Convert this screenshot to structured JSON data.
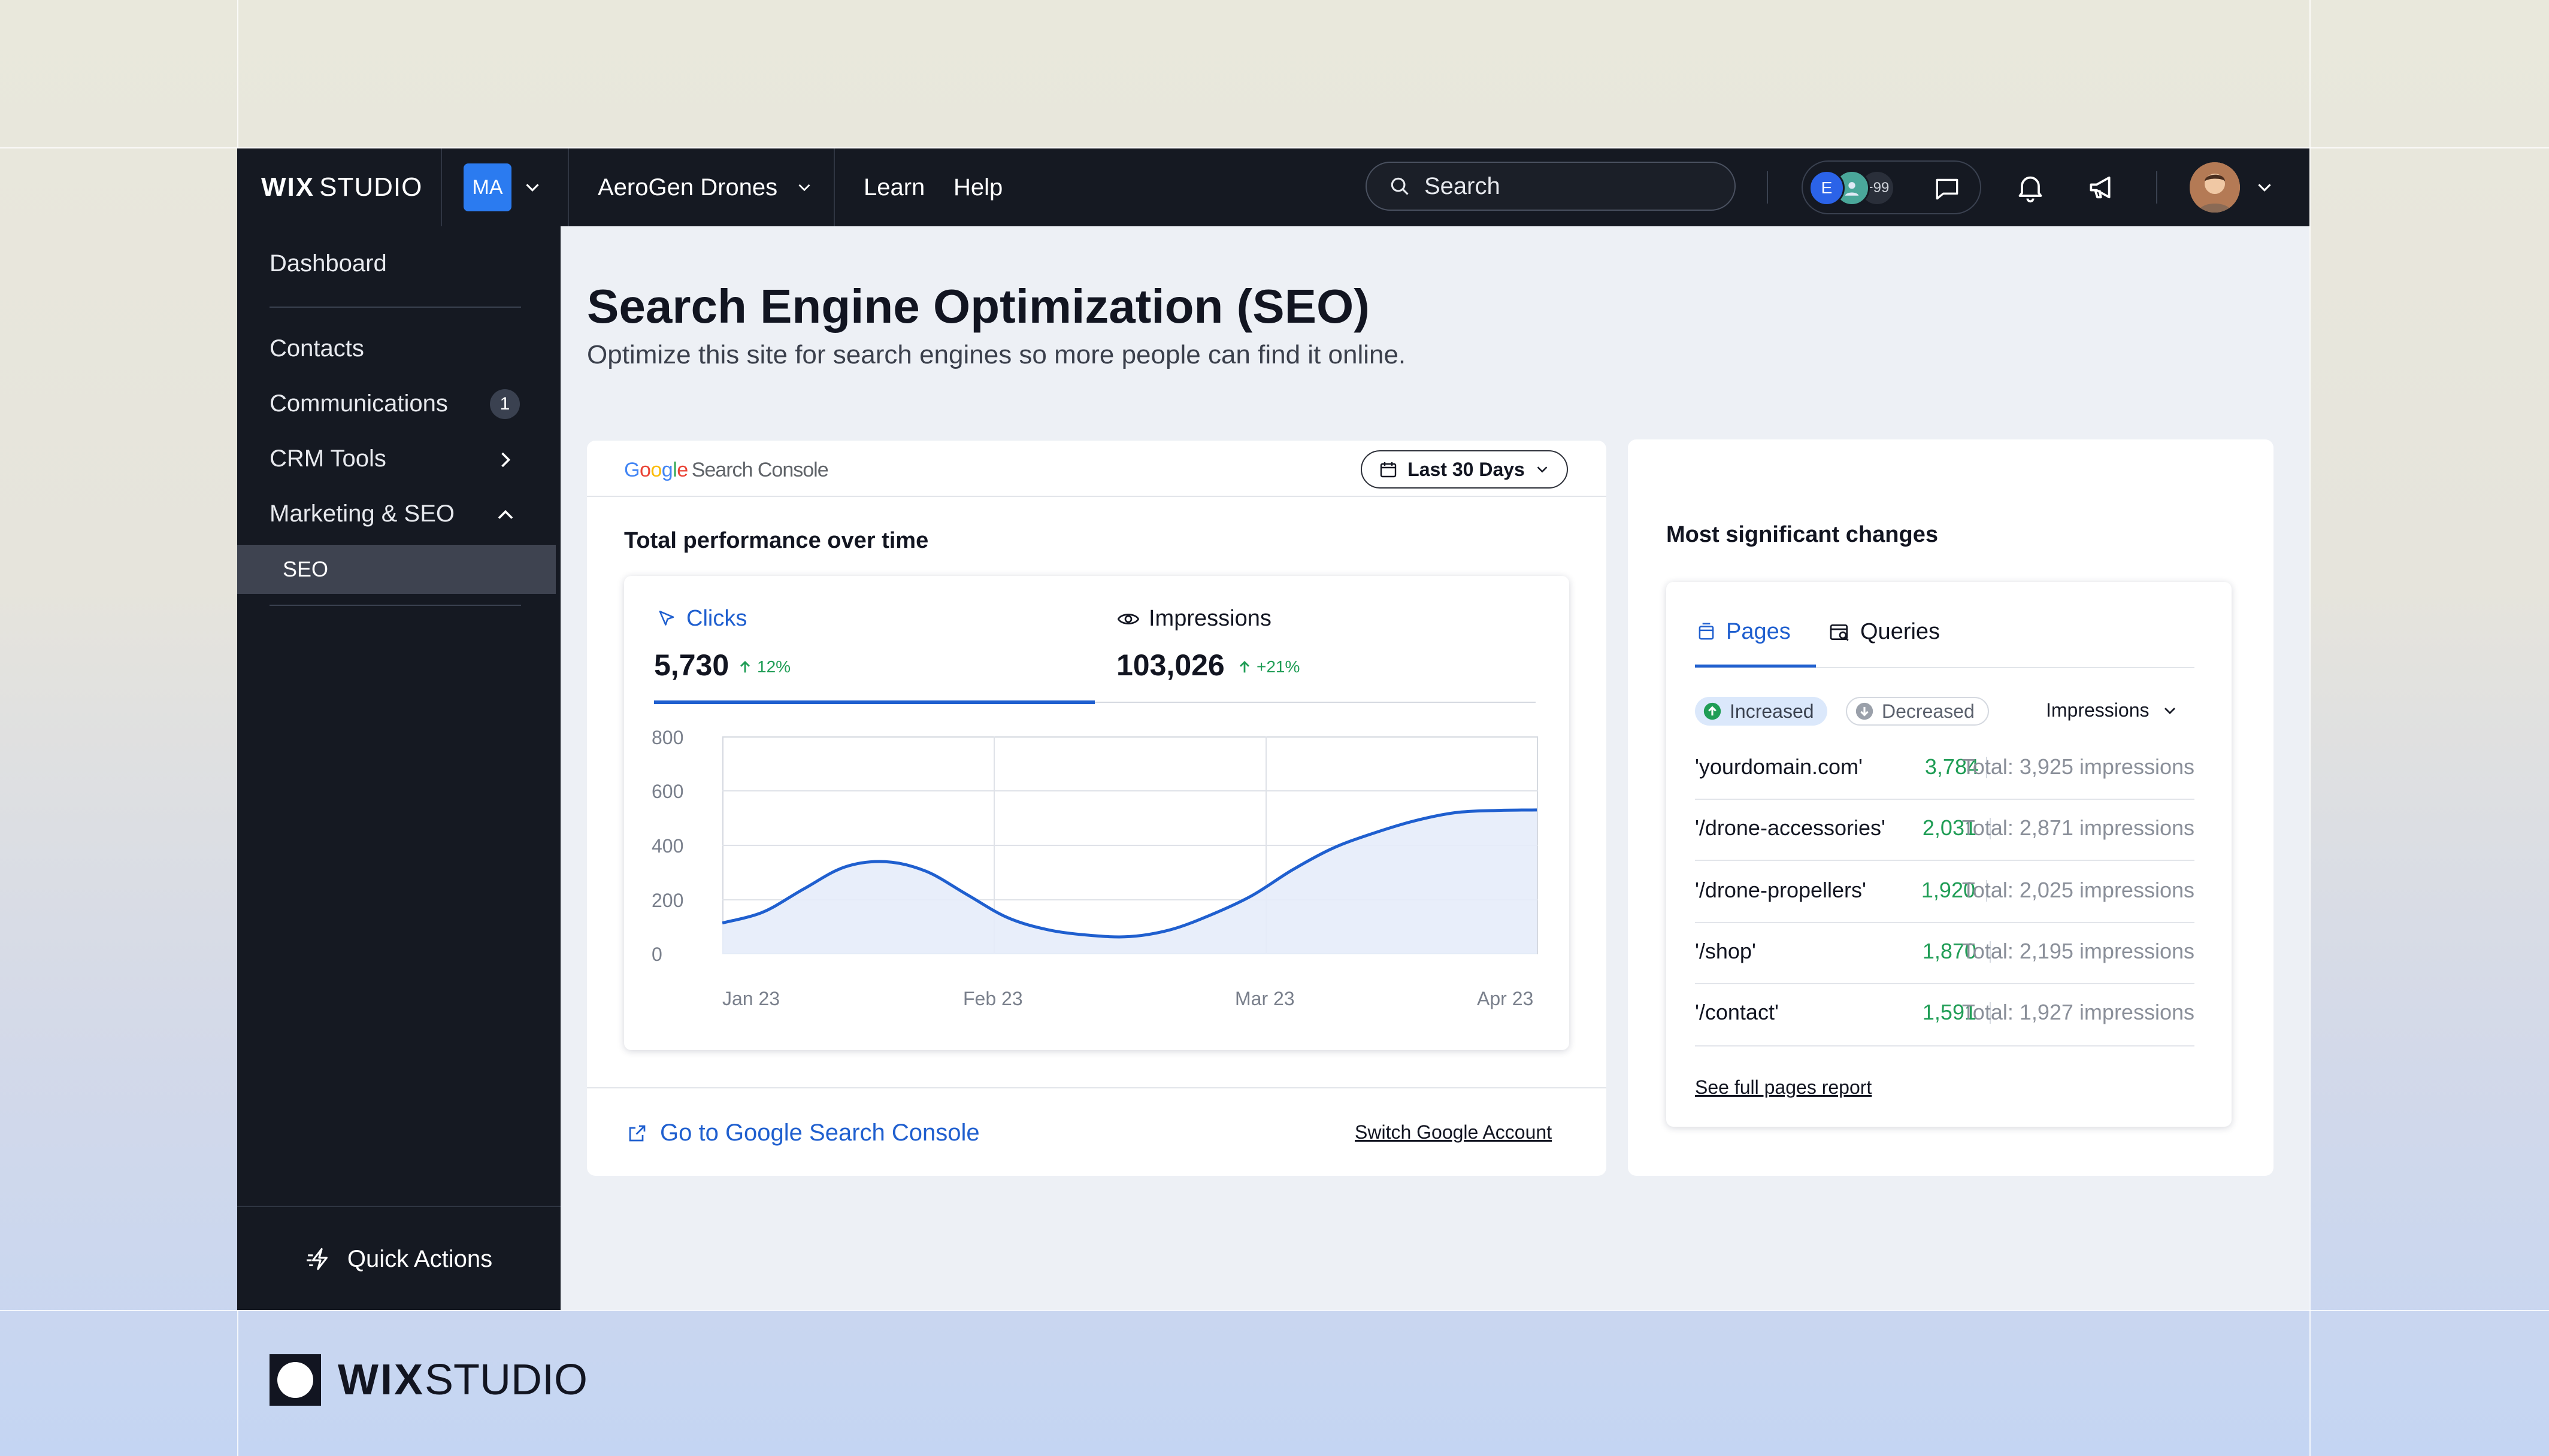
{
  "topbar": {
    "logo_bold": "WIX",
    "logo_light": "STUDIO",
    "workspace_initials": "MA",
    "site_name": "AeroGen Drones",
    "links": [
      "Learn",
      "Help"
    ],
    "search_placeholder": "Search",
    "collaborators": {
      "first_initial": "E",
      "more_count": "+99"
    }
  },
  "sidebar": {
    "items": [
      {
        "label": "Dashboard"
      },
      {
        "label": "Contacts"
      },
      {
        "label": "Communications",
        "badge": "1"
      },
      {
        "label": "CRM Tools"
      },
      {
        "label": "Marketing & SEO"
      }
    ],
    "subitem": "SEO",
    "quick_actions": "Quick Actions"
  },
  "page": {
    "title": "Search Engine Optimization (SEO)",
    "subtitle": "Optimize this site for search engines so more people can find it online."
  },
  "performance_card": {
    "brand_google": "Google",
    "brand_product": "Search Console",
    "date_range": "Last 30 Days",
    "section_title": "Total performance over time",
    "metrics": [
      {
        "label": "Clicks",
        "value": "5,730",
        "change": "12%",
        "active": true
      },
      {
        "label": "Impressions",
        "value": "103,026",
        "change": "+21%",
        "active": false
      }
    ],
    "link_label": "Go to Google Search Console",
    "switch_account": "Switch Google Account"
  },
  "chart_data": {
    "type": "area",
    "title": "",
    "xlabel": "",
    "ylabel": "",
    "x_ticks": [
      "Jan 23",
      "Feb 23",
      "Mar 23",
      "Apr 23"
    ],
    "y_ticks": [
      "800",
      "600",
      "400",
      "200",
      "0"
    ],
    "ylim": [
      0,
      800
    ],
    "grid": true,
    "series": [
      {
        "color": "#1f5fcf",
        "fill": "#e5ecfa",
        "x": [
          0,
          0.05,
          0.1,
          0.15,
          0.2,
          0.25,
          0.3,
          0.35,
          0.4,
          0.45,
          0.5,
          0.55,
          0.6,
          0.65,
          0.7,
          0.75,
          0.8,
          0.85,
          0.9,
          0.95,
          1.0
        ],
        "values": [
          115,
          155,
          240,
          320,
          340,
          305,
          220,
          135,
          90,
          70,
          65,
          90,
          145,
          215,
          310,
          390,
          445,
          490,
          520,
          528,
          530
        ]
      }
    ]
  },
  "changes_card": {
    "title": "Most significant changes",
    "tabs": [
      "Pages",
      "Queries"
    ],
    "filters": [
      "Increased",
      "Decreased"
    ],
    "metric_select": "Impressions",
    "rows": [
      {
        "path": "'yourdomain.com'",
        "value": "3,784",
        "total": "Total: 3,925 impressions"
      },
      {
        "path": "'/drone-accessories'",
        "value": "2,031",
        "total": "Total: 2,871 impressions"
      },
      {
        "path": "'/drone-propellers'",
        "value": "1,920",
        "total": "Total: 2,025 impressions"
      },
      {
        "path": "'/shop'",
        "value": "1,870",
        "total": "Total: 2,195 impressions"
      },
      {
        "path": "'/contact'",
        "value": "1,591",
        "total": "Total: 1,927 impressions"
      }
    ],
    "full_report": "See full pages report"
  },
  "footer_brand": {
    "bold": "WIX",
    "light": "STUDIO"
  }
}
